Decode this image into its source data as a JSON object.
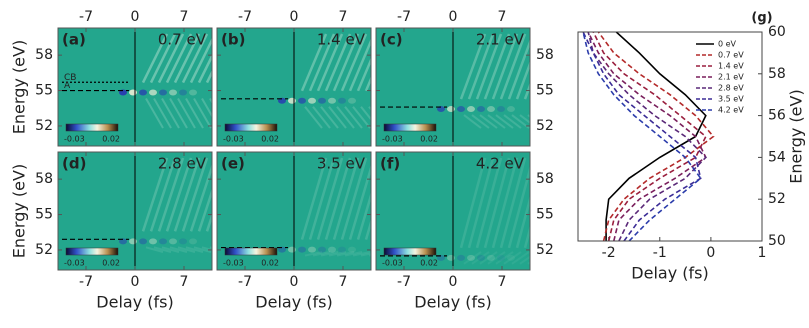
{
  "chart_data": [
    {
      "type": "heatmap",
      "label": "(a)",
      "annotation": "0.7 eV",
      "annotation_color": "#a8383a",
      "xlim": [
        -11,
        11
      ],
      "xticks": [
        -7,
        0,
        7
      ],
      "ylim": [
        50.3,
        60.3
      ],
      "yticks": [
        52,
        55,
        58
      ],
      "ylabel": "Energy (eV)",
      "levels": [
        {
          "label": "CB",
          "value": 55.7
        },
        {
          "label": "A",
          "value": 55.0
        }
      ],
      "colorbar_ticks": [
        -0.03,
        0.02
      ]
    },
    {
      "type": "heatmap",
      "label": "(b)",
      "annotation": "1.4 eV",
      "annotation_color": "#8c3358",
      "xlim": [
        -11,
        11
      ],
      "xticks": [
        -7,
        0,
        7
      ],
      "ylim": [
        50.3,
        60.3
      ],
      "yticks": [
        52,
        55,
        58
      ],
      "levels": [
        {
          "value": 54.3
        }
      ],
      "colorbar_ticks": [
        -0.03,
        0.02
      ]
    },
    {
      "type": "heatmap",
      "label": "(c)",
      "annotation": "2.1 eV",
      "annotation_color": "#6b3470",
      "xlim": [
        -11,
        11
      ],
      "xticks": [
        -7,
        0,
        7
      ],
      "ylim": [
        50.3,
        60.3
      ],
      "yticks": [
        52,
        55,
        58
      ],
      "levels": [
        {
          "value": 53.6
        }
      ],
      "colorbar_ticks": [
        -0.03,
        0.02
      ]
    },
    {
      "type": "heatmap",
      "label": "(d)",
      "annotation": "2.8 eV",
      "annotation_color": "#433582",
      "xlim": [
        -11,
        11
      ],
      "xticks": [
        -7,
        0,
        7
      ],
      "ylim": [
        50.3,
        60.3
      ],
      "yticks": [
        52,
        55,
        58
      ],
      "xlabel": "Delay (fs)",
      "ylabel": "Energy (eV)",
      "levels": [
        {
          "value": 52.9
        }
      ],
      "colorbar_ticks": [
        -0.03,
        0.02
      ]
    },
    {
      "type": "heatmap",
      "label": "(e)",
      "annotation": "3.5 eV",
      "annotation_color": "#3b3f92",
      "xlim": [
        -11,
        11
      ],
      "xticks": [
        -7,
        0,
        7
      ],
      "ylim": [
        50.3,
        60.3
      ],
      "yticks": [
        52,
        55,
        58
      ],
      "xlabel": "Delay (fs)",
      "levels": [
        {
          "value": 52.2
        }
      ],
      "colorbar_ticks": [
        -0.03,
        0.02
      ]
    },
    {
      "type": "heatmap",
      "label": "(f)",
      "annotation": "4.2 eV",
      "annotation_color": "#34469e",
      "xlim": [
        -11,
        11
      ],
      "xticks": [
        -7,
        0,
        7
      ],
      "ylim": [
        50.3,
        60.3
      ],
      "yticks": [
        52,
        55,
        58
      ],
      "xlabel": "Delay (fs)",
      "levels": [
        {
          "value": 51.5
        }
      ],
      "colorbar_ticks": [
        -0.03,
        0.02
      ]
    },
    {
      "type": "line",
      "label": "(g)",
      "xlabel": "Delay (fs)",
      "ylabel": "Energy (eV)",
      "xlim": [
        -2.6,
        1
      ],
      "xticks": [
        -2,
        -1,
        0,
        1
      ],
      "ylim": [
        50,
        60
      ],
      "yticks": [
        50,
        52,
        54,
        56,
        58,
        60
      ],
      "legend": "upper right",
      "y": [
        50,
        51,
        52,
        53,
        54,
        55,
        56,
        57,
        58,
        59,
        60
      ],
      "series": [
        {
          "name": "0 eV",
          "color": "#000000",
          "dash": false,
          "values": [
            -2.05,
            -2.05,
            -2.0,
            -1.6,
            -1.0,
            -0.3,
            -0.1,
            -0.5,
            -1.0,
            -1.4,
            -1.85
          ]
        },
        {
          "name": "0.7 eV",
          "color": "#b42a2a",
          "dash": true,
          "values": [
            -2.1,
            -2.0,
            -1.7,
            -1.2,
            -0.5,
            0.05,
            -0.3,
            -0.8,
            -1.4,
            -1.9,
            -2.2
          ]
        },
        {
          "name": "1.4 eV",
          "color": "#9a1f3e",
          "dash": true,
          "values": [
            -2.0,
            -1.9,
            -1.6,
            -1.0,
            -0.3,
            -0.1,
            -0.6,
            -1.1,
            -1.7,
            -2.1,
            -2.3
          ]
        },
        {
          "name": "2.1 eV",
          "color": "#7a1f5c",
          "dash": true,
          "values": [
            -1.9,
            -1.8,
            -1.4,
            -0.7,
            -0.1,
            -0.3,
            -0.8,
            -1.4,
            -1.9,
            -2.2,
            -2.4
          ]
        },
        {
          "name": "2.8 eV",
          "color": "#5a2878",
          "dash": true,
          "values": [
            -1.8,
            -1.6,
            -1.2,
            -0.5,
            -0.1,
            -0.5,
            -1.1,
            -1.6,
            -2.0,
            -2.3,
            -2.4
          ]
        },
        {
          "name": "3.5 eV",
          "color": "#3b2c96",
          "dash": true,
          "values": [
            -1.7,
            -1.4,
            -0.9,
            -0.2,
            -0.3,
            -0.8,
            -1.3,
            -1.8,
            -2.1,
            -2.3,
            -2.5
          ]
        },
        {
          "name": "4.2 eV",
          "color": "#2b3cab",
          "dash": true,
          "values": [
            -1.6,
            -1.2,
            -0.7,
            -0.2,
            -0.5,
            -1.0,
            -1.5,
            -1.9,
            -2.2,
            -2.4,
            -2.5
          ]
        }
      ]
    }
  ]
}
